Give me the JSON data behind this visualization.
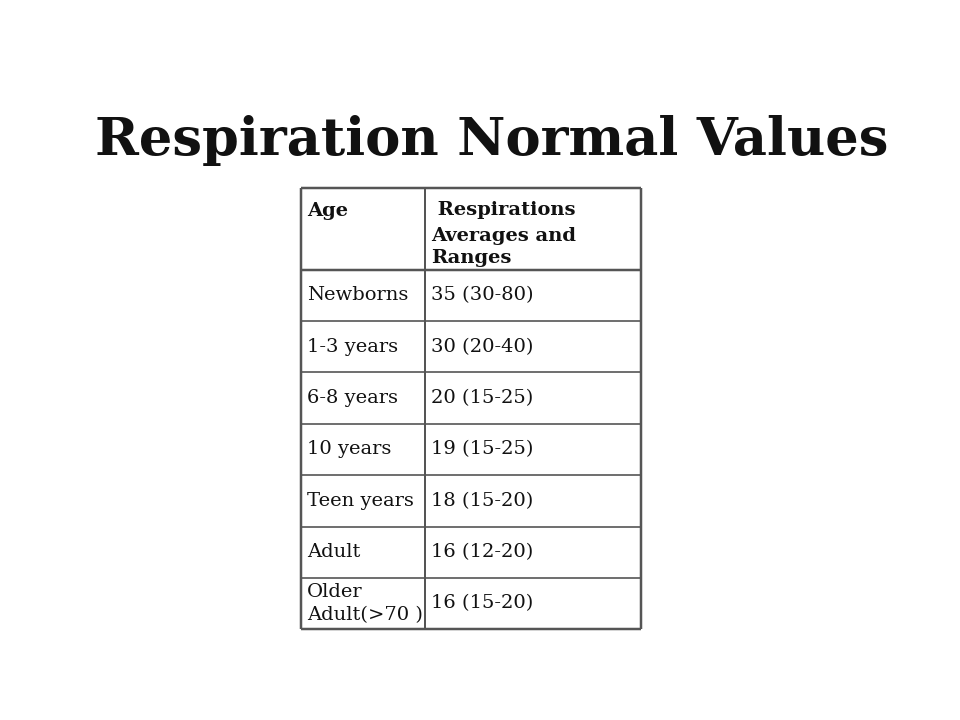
{
  "title": "Respiration Normal Values",
  "title_fontsize": 38,
  "title_fontweight": "bold",
  "background_color": "#ffffff",
  "text_color": "#111111",
  "col1_header": "Age",
  "col2_header_line1": " Respirations",
  "col2_header_line2": "Averages and\nRanges",
  "rows": [
    [
      "Newborns",
      "35 (30-80)"
    ],
    [
      "1-3 years",
      "30 (20-40)"
    ],
    [
      "6-8 years",
      "20 (15-25)"
    ],
    [
      "10 years",
      "19 (15-25)"
    ],
    [
      "Teen years",
      "18 (15-20)"
    ],
    [
      "Adult",
      "16 (12-20)"
    ],
    [
      "Older\nAdult(>70 )",
      "16 (15-20)"
    ]
  ],
  "border_color": "#555555",
  "border_linewidth": 1.2,
  "cell_fontsize": 14,
  "header_fontsize": 14,
  "font_family": "DejaVu Serif"
}
